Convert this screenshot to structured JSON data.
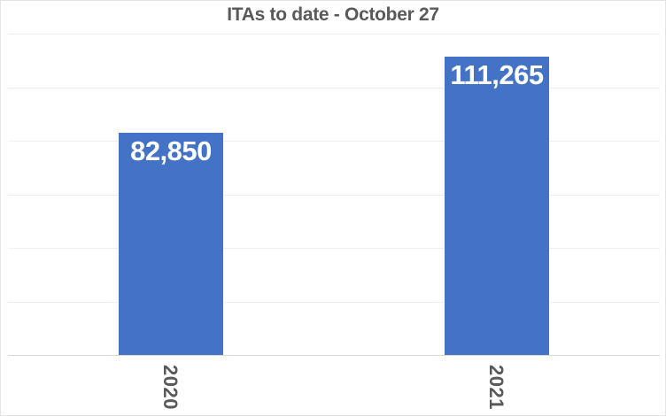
{
  "title": "ITAs to date - October 27",
  "colors": {
    "background": "#FFFFFF",
    "border": "#E3E3E3",
    "bar": "#4472C4",
    "title_text": "#595959",
    "axis_tick_text": "#595959",
    "data_label_text": "#FFFFFF",
    "gridline": "#EFEFEF",
    "axis_line": "#D6D6D6"
  },
  "chart_data": {
    "type": "bar",
    "title": "ITAs to date - October 27",
    "categories": [
      "2020",
      "2021"
    ],
    "values": [
      82850,
      111265
    ],
    "data_labels": [
      "82,850",
      "111,265"
    ],
    "xlabel": "",
    "ylabel": "",
    "ylim": [
      0,
      120000
    ],
    "gridline_step": 20000,
    "grid": true,
    "legend": false,
    "x_tick_rotation_deg": 90,
    "data_label_position": "inside-top",
    "bar_color": "#4472C4"
  }
}
